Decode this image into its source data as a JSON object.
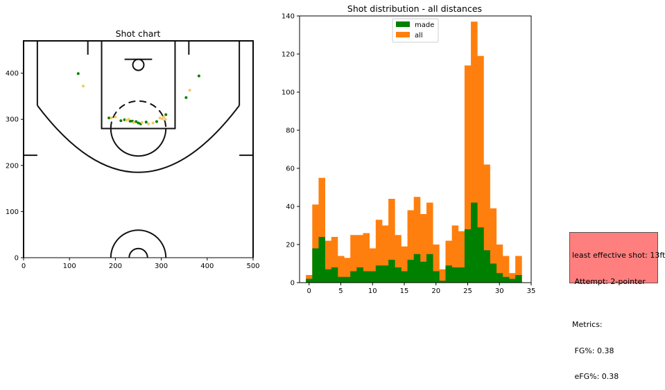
{
  "chart_data": [
    {
      "type": "scatter",
      "title": "Shot chart",
      "xlim": [
        0,
        500
      ],
      "ylim": [
        0,
        470
      ],
      "x_ticks": [
        0,
        100,
        200,
        300,
        400,
        500
      ],
      "y_ticks": [
        0,
        100,
        200,
        300,
        400
      ],
      "grid": false,
      "series": [
        {
          "color": "#008000",
          "points": [
            [
              119,
              399
            ],
            [
              382,
              394
            ],
            [
              354,
              347
            ],
            [
              186,
              303
            ],
            [
              212,
              297
            ],
            [
              220,
              299
            ],
            [
              232,
              296
            ],
            [
              237,
              296
            ],
            [
              245,
              295
            ],
            [
              250,
              292
            ],
            [
              255,
              290
            ],
            [
              267,
              294
            ],
            [
              290,
              295
            ],
            [
              310,
              310
            ]
          ]
        },
        {
          "color": "#f5c862",
          "points": [
            [
              130,
              372
            ],
            [
              362,
              363
            ],
            [
              191,
              303
            ],
            [
              200,
              305
            ],
            [
              224,
              298
            ],
            [
              229,
              300
            ],
            [
              240,
              293
            ],
            [
              258,
              293
            ],
            [
              272,
              290
            ],
            [
              282,
              292
            ],
            [
              297,
              303
            ],
            [
              302,
              301
            ],
            [
              309,
              300
            ],
            [
              305,
              305
            ]
          ]
        }
      ]
    },
    {
      "type": "bar",
      "title": "Shot distribution - all distances",
      "xlim": [
        -1.5,
        35
      ],
      "ylim": [
        0,
        140
      ],
      "x_ticks": [
        0,
        5,
        10,
        15,
        20,
        25,
        30,
        35
      ],
      "y_ticks": [
        0,
        20,
        40,
        60,
        80,
        100,
        120,
        140
      ],
      "bin_width": 1,
      "bin_start": -0.5,
      "legend": "top-center",
      "series": [
        {
          "name": "all",
          "color": "#ff7f0e",
          "values": [
            4,
            41,
            55,
            22,
            24,
            14,
            13,
            25,
            25,
            26,
            18,
            33,
            30,
            44,
            25,
            19,
            38,
            45,
            36,
            42,
            20,
            7,
            22,
            30,
            27,
            114,
            137,
            119,
            62,
            39,
            20,
            14,
            5,
            14
          ]
        },
        {
          "name": "made",
          "color": "#008000",
          "values": [
            2,
            18,
            24,
            7,
            8,
            3,
            3,
            6,
            8,
            6,
            6,
            9,
            9,
            12,
            8,
            6,
            12,
            15,
            11,
            15,
            6,
            1,
            9,
            8,
            8,
            28,
            42,
            29,
            17,
            10,
            5,
            3,
            2,
            4
          ]
        }
      ]
    }
  ],
  "info_box": {
    "lines": [
      "least effective shot: 13ft",
      " Attempt: 2-pointer",
      "",
      "Metrics:",
      " FG%: 0.38",
      " eFG%: 0.38"
    ],
    "background": "#ff7f7f"
  }
}
